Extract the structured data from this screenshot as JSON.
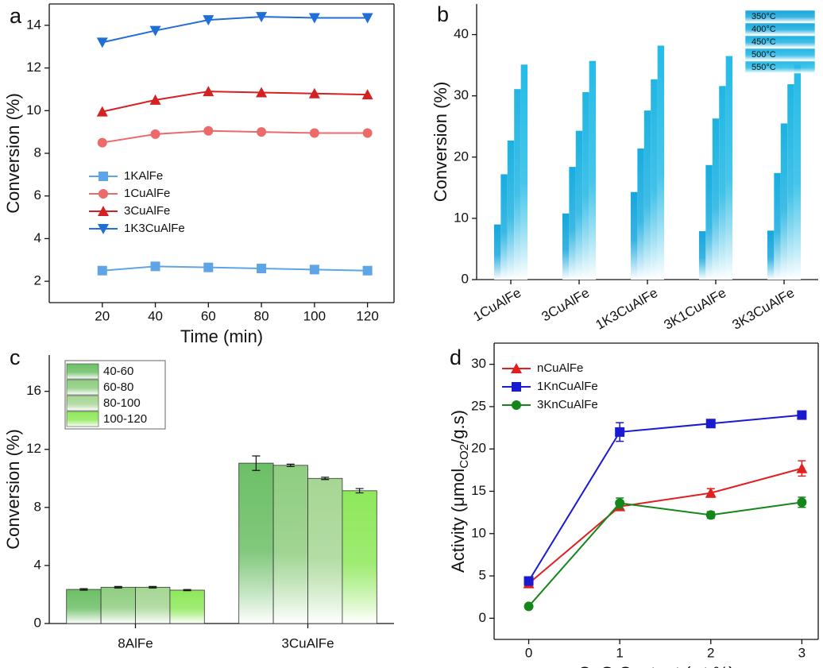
{
  "chart_data": [
    {
      "type": "line",
      "panel": "a",
      "x_label": "Time (min)",
      "y_label": "Conversion (%)",
      "x": [
        20,
        40,
        60,
        80,
        100,
        120
      ],
      "xlim": [
        0,
        130
      ],
      "xticks": [
        20,
        40,
        60,
        80,
        100,
        120
      ],
      "ylim": [
        1,
        15
      ],
      "yticks": [
        2,
        4,
        6,
        8,
        10,
        12,
        14
      ],
      "series": [
        {
          "name": "1KAlFe",
          "color": "#5da5e6",
          "marker": "square",
          "values": [
            2.5,
            2.7,
            2.65,
            2.6,
            2.55,
            2.5
          ]
        },
        {
          "name": "1CuAlFe",
          "color": "#ec6a6a",
          "marker": "circle",
          "values": [
            8.5,
            8.9,
            9.05,
            9.0,
            8.95,
            8.95
          ]
        },
        {
          "name": "3CuAlFe",
          "color": "#d42222",
          "marker": "triangle-up",
          "values": [
            9.95,
            10.5,
            10.9,
            10.85,
            10.8,
            10.75
          ]
        },
        {
          "name": "1K3CuAlFe",
          "color": "#1f6fd6",
          "marker": "triangle-down",
          "values": [
            13.2,
            13.75,
            14.25,
            14.4,
            14.35,
            14.35
          ]
        }
      ]
    },
    {
      "type": "bar",
      "panel": "b",
      "y_label": "Conversion (%)",
      "categories": [
        "1CuAlFe",
        "3CuAlFe",
        "1K3CuAlFe",
        "3K1CuAlFe",
        "3K3CuAlFe"
      ],
      "ylim": [
        0,
        45
      ],
      "yticks": [
        0,
        10,
        20,
        30,
        40
      ],
      "series": [
        {
          "name": "350°C",
          "color": "#16a6dc",
          "values": [
            9.0,
            10.8,
            14.3,
            7.9,
            8.0
          ]
        },
        {
          "name": "400°C",
          "color": "#18acdf",
          "values": [
            17.2,
            18.4,
            21.4,
            18.7,
            17.4
          ]
        },
        {
          "name": "450°C",
          "color": "#1cb2e2",
          "values": [
            22.7,
            24.3,
            27.6,
            26.3,
            25.5
          ]
        },
        {
          "name": "500°C",
          "color": "#20b6e4",
          "values": [
            31.1,
            30.6,
            32.7,
            31.6,
            31.9
          ]
        },
        {
          "name": "550°C",
          "color": "#26bbe6",
          "values": [
            35.1,
            35.7,
            38.2,
            36.5,
            35.1
          ]
        }
      ]
    },
    {
      "type": "bar",
      "panel": "c",
      "y_label": "Conversion (%)",
      "categories": [
        "8AlFe",
        "3CuAlFe"
      ],
      "ylim": [
        0,
        18.5
      ],
      "yticks": [
        0,
        4,
        8,
        12,
        16
      ],
      "series": [
        {
          "name": "40-60",
          "color": "#6cbf66",
          "values": [
            2.35,
            11.05
          ],
          "errors": [
            0.05,
            0.5
          ]
        },
        {
          "name": "60-80",
          "color": "#8fcd80",
          "values": [
            2.5,
            10.9
          ],
          "errors": [
            0.05,
            0.08
          ]
        },
        {
          "name": "80-100",
          "color": "#a6d694",
          "values": [
            2.5,
            10.0
          ],
          "errors": [
            0.05,
            0.08
          ]
        },
        {
          "name": "100-120",
          "color": "#8ee85a",
          "values": [
            2.3,
            9.15
          ],
          "errors": [
            0.04,
            0.15
          ]
        }
      ]
    },
    {
      "type": "line",
      "panel": "d",
      "x_label": "CuO Content (wt.%)",
      "y_label": [
        "Activity (μmol",
        "CO2",
        "/g.s)"
      ],
      "x": [
        0,
        1,
        2,
        3
      ],
      "xlim": [
        -0.38,
        3.18
      ],
      "xticks": [
        0,
        1,
        2,
        3
      ],
      "ylim": [
        -2.5,
        32.5
      ],
      "yticks": [
        0,
        5,
        10,
        15,
        20,
        25,
        30
      ],
      "series": [
        {
          "name": "nCuAlFe",
          "color": "#e02020",
          "marker": "triangle-up",
          "values": [
            4.1,
            13.2,
            14.8,
            17.7
          ],
          "errors": [
            0.3,
            0.4,
            0.5,
            0.9
          ]
        },
        {
          "name": "1KnCuAlFe",
          "color": "#1a1ad0",
          "marker": "square",
          "values": [
            4.4,
            22.0,
            23.0,
            24.0
          ],
          "errors": [
            0.3,
            1.1,
            0.3,
            0.4
          ]
        },
        {
          "name": "3KnCuAlFe",
          "color": "#15861a",
          "marker": "circle",
          "values": [
            1.4,
            13.6,
            12.2,
            13.7
          ],
          "errors": [
            0.2,
            0.6,
            0.4,
            0.6
          ]
        }
      ]
    }
  ]
}
